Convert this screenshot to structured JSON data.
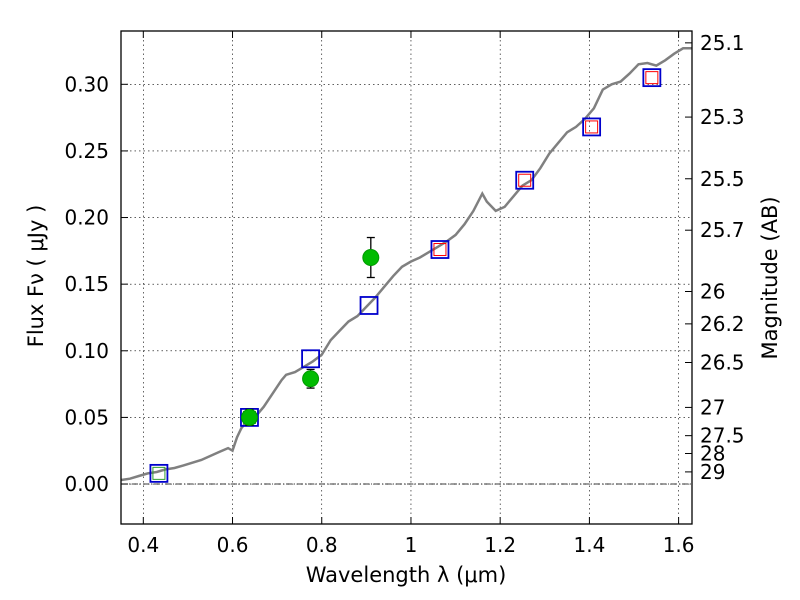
{
  "chart_data": {
    "type": "scatter",
    "xlabel": "Wavelength  λ (μm)",
    "ylabel": "Flux  Fν  ( μJy )",
    "ylabel_right": "Magnitude (AB)",
    "xlim": [
      0.35,
      1.63
    ],
    "ylim": [
      -0.03,
      0.34
    ],
    "grid": true,
    "x_ticks": [
      0.4,
      0.6,
      0.8,
      1.0,
      1.2,
      1.4,
      1.6
    ],
    "x_tick_labels": [
      "0.4",
      "0.6",
      "0.8",
      "1",
      "1.2",
      "1.4",
      "1.6"
    ],
    "y_ticks": [
      0.0,
      0.05,
      0.1,
      0.15,
      0.2,
      0.25,
      0.3
    ],
    "y_tick_labels": [
      "0.00",
      "0.05",
      "0.10",
      "0.15",
      "0.20",
      "0.25",
      "0.30"
    ],
    "right_ticks": [
      {
        "label": "25.1",
        "flux": 0.3311
      },
      {
        "label": "25.3",
        "flux": 0.2754
      },
      {
        "label": "25.5",
        "flux": 0.2291
      },
      {
        "label": "25.7",
        "flux": 0.1905
      },
      {
        "label": "26",
        "flux": 0.1445
      },
      {
        "label": "26.2",
        "flux": 0.1202
      },
      {
        "label": "26.5",
        "flux": 0.0912
      },
      {
        "label": "27",
        "flux": 0.0575
      },
      {
        "label": "27.5",
        "flux": 0.0363
      },
      {
        "label": "28",
        "flux": 0.0229
      },
      {
        "label": "29",
        "flux": 0.0091
      }
    ],
    "series": [
      {
        "type": "line",
        "color": "#808080",
        "points": [
          [
            0.35,
            0.003
          ],
          [
            0.37,
            0.004
          ],
          [
            0.39,
            0.006
          ],
          [
            0.41,
            0.008
          ],
          [
            0.43,
            0.009
          ],
          [
            0.45,
            0.011
          ],
          [
            0.47,
            0.012
          ],
          [
            0.49,
            0.014
          ],
          [
            0.51,
            0.016
          ],
          [
            0.53,
            0.018
          ],
          [
            0.55,
            0.021
          ],
          [
            0.57,
            0.024
          ],
          [
            0.59,
            0.027
          ],
          [
            0.6,
            0.025
          ],
          [
            0.61,
            0.035
          ],
          [
            0.62,
            0.042
          ],
          [
            0.63,
            0.046
          ],
          [
            0.65,
            0.05
          ],
          [
            0.67,
            0.058
          ],
          [
            0.69,
            0.068
          ],
          [
            0.71,
            0.078
          ],
          [
            0.72,
            0.082
          ],
          [
            0.74,
            0.084
          ],
          [
            0.76,
            0.088
          ],
          [
            0.78,
            0.092
          ],
          [
            0.8,
            0.097
          ],
          [
            0.82,
            0.108
          ],
          [
            0.84,
            0.115
          ],
          [
            0.86,
            0.122
          ],
          [
            0.88,
            0.126
          ],
          [
            0.9,
            0.133
          ],
          [
            0.92,
            0.14
          ],
          [
            0.94,
            0.148
          ],
          [
            0.96,
            0.156
          ],
          [
            0.98,
            0.163
          ],
          [
            1.0,
            0.167
          ],
          [
            1.02,
            0.17
          ],
          [
            1.04,
            0.174
          ],
          [
            1.06,
            0.178
          ],
          [
            1.08,
            0.182
          ],
          [
            1.1,
            0.187
          ],
          [
            1.12,
            0.195
          ],
          [
            1.14,
            0.205
          ],
          [
            1.16,
            0.218
          ],
          [
            1.17,
            0.212
          ],
          [
            1.19,
            0.205
          ],
          [
            1.21,
            0.208
          ],
          [
            1.23,
            0.216
          ],
          [
            1.25,
            0.224
          ],
          [
            1.27,
            0.228
          ],
          [
            1.29,
            0.237
          ],
          [
            1.31,
            0.248
          ],
          [
            1.33,
            0.256
          ],
          [
            1.35,
            0.264
          ],
          [
            1.37,
            0.268
          ],
          [
            1.39,
            0.274
          ],
          [
            1.41,
            0.282
          ],
          [
            1.43,
            0.296
          ],
          [
            1.45,
            0.3
          ],
          [
            1.47,
            0.302
          ],
          [
            1.49,
            0.308
          ],
          [
            1.51,
            0.315
          ],
          [
            1.53,
            0.316
          ],
          [
            1.55,
            0.314
          ],
          [
            1.57,
            0.318
          ],
          [
            1.59,
            0.323
          ],
          [
            1.61,
            0.327
          ],
          [
            1.63,
            0.327
          ]
        ]
      },
      {
        "type": "model_blue_squares",
        "color": "#0000cc",
        "x": [
          0.435,
          0.638,
          0.775,
          0.906,
          1.065,
          1.255,
          1.405,
          1.54
        ],
        "y": [
          0.008,
          0.05,
          0.094,
          0.134,
          0.176,
          0.228,
          0.268,
          0.305
        ]
      },
      {
        "type": "model_inner_squares",
        "x": [
          0.435,
          0.638,
          1.065,
          1.255,
          1.405,
          1.54
        ],
        "y": [
          0.008,
          0.05,
          0.176,
          0.228,
          0.268,
          0.305
        ],
        "colors": [
          "#2e9e2e",
          "#2e9e2e",
          "#ff0000",
          "#ff0000",
          "#ff0000",
          "#ff0000"
        ]
      },
      {
        "type": "observed",
        "color": "#00bb00",
        "x": [
          0.638,
          0.775,
          0.91
        ],
        "y": [
          0.05,
          0.079,
          0.17
        ],
        "err": [
          0.006,
          0.007,
          0.015
        ]
      }
    ]
  }
}
